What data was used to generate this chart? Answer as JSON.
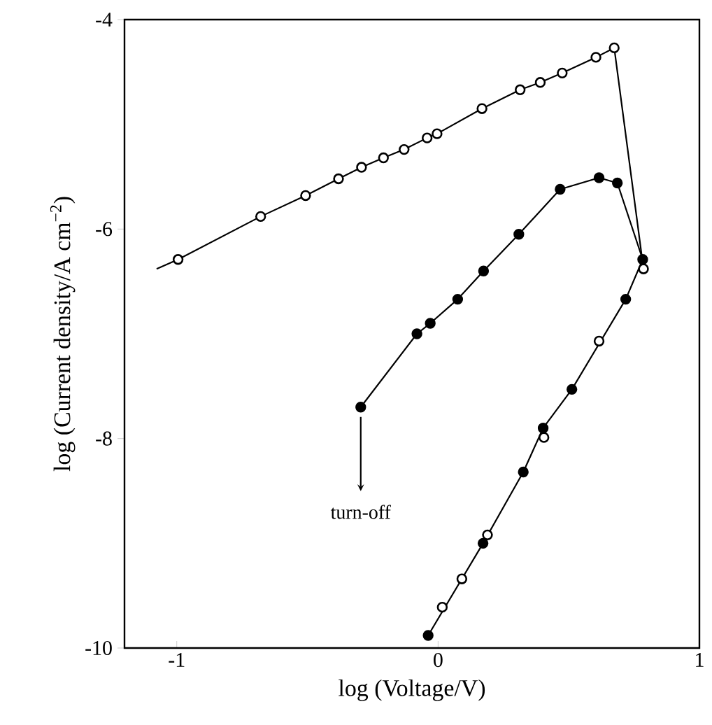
{
  "chart_data": {
    "type": "line",
    "xlabel": "log (Voltage/V)",
    "ylabel": "log (Current density/A cm$^{−2}$)",
    "xlim": [
      -1.2,
      1
    ],
    "ylim": [
      -10,
      -4
    ],
    "xticks": [
      -1,
      0,
      1
    ],
    "yticks": [
      -4,
      -6,
      -8,
      -10
    ],
    "series": [
      {
        "color": "#000000",
        "marker": "none",
        "x": [
          -1.077,
          -0.995,
          -0.679,
          -0.507,
          -0.381,
          -0.293,
          -0.209,
          -0.13,
          -0.042,
          -0.004,
          0.168,
          0.314,
          0.391,
          0.475,
          0.604,
          0.674,
          0.786
        ],
        "values": [
          -6.38,
          -6.29,
          -5.88,
          -5.68,
          -5.52,
          -5.41,
          -5.32,
          -5.24,
          -5.13,
          -5.09,
          -4.85,
          -4.67,
          -4.6,
          -4.51,
          -4.36,
          -4.27,
          -6.38
        ]
      },
      {
        "type": "scatter",
        "color": "#ffffff",
        "marker": "circle",
        "x": [
          -0.995,
          -0.679,
          -0.507,
          -0.381,
          -0.293,
          -0.209,
          -0.13,
          -0.042,
          -0.004,
          0.168,
          0.314,
          0.391,
          0.475,
          0.604,
          0.674,
          0.786
        ],
        "values": [
          -6.29,
          -5.88,
          -5.68,
          -5.52,
          -5.41,
          -5.32,
          -5.24,
          -5.13,
          -5.09,
          -4.85,
          -4.67,
          -4.6,
          -4.51,
          -4.36,
          -4.27,
          -6.38
        ]
      },
      {
        "color": "#000000",
        "marker": "circle",
        "x": [
          -0.038,
          0.172,
          0.326,
          0.402,
          0.512,
          0.718,
          0.783,
          0.686,
          0.616,
          0.467,
          0.309,
          0.174,
          0.075,
          -0.03,
          -0.081,
          -0.296
        ],
        "values": [
          -9.88,
          -9.0,
          -8.32,
          -7.9,
          -7.53,
          -6.67,
          -6.29,
          -5.56,
          -5.51,
          -5.62,
          -6.05,
          -6.4,
          -6.67,
          -6.9,
          -7.0,
          -7.7
        ]
      },
      {
        "type": "scatter",
        "color": "#ffffff",
        "marker": "circle",
        "x": [
          0.016,
          0.091,
          0.189,
          0.405,
          0.616
        ],
        "values": [
          -9.61,
          -9.34,
          -8.92,
          -7.99,
          -7.07
        ]
      }
    ],
    "annotations": [
      {
        "text": "turn-off",
        "x": -0.296,
        "y": -7.7
      }
    ]
  }
}
